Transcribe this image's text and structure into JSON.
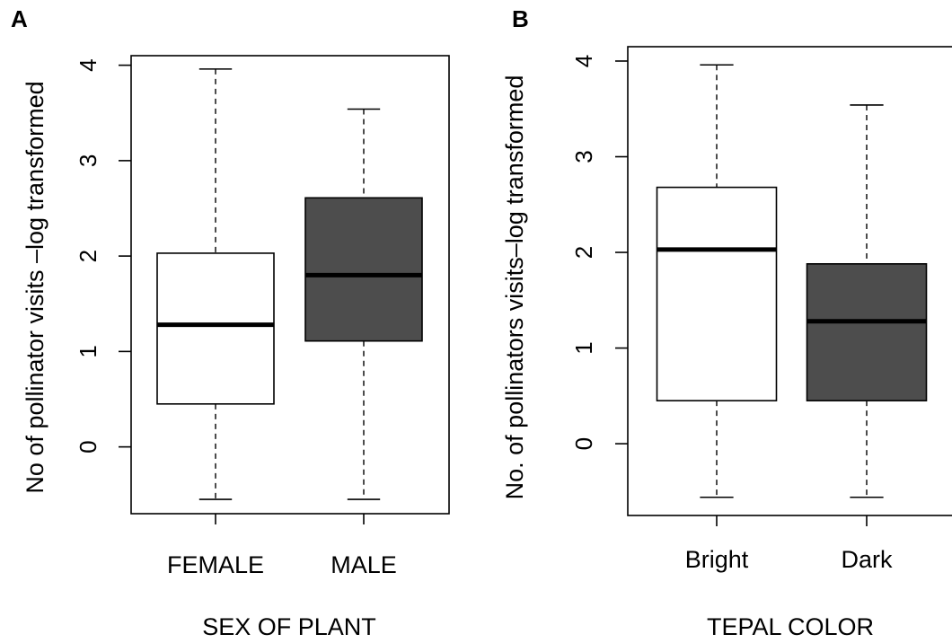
{
  "chart_data": [
    {
      "type": "boxplot",
      "panel_label": "A",
      "xlabel": "SEX OF PLANT",
      "ylabel": "No of pollinator visits –log transformed",
      "ylim": [
        -0.7,
        4.1
      ],
      "yticks": [
        0,
        1,
        2,
        3,
        4
      ],
      "categories": [
        "FEMALE",
        "MALE"
      ],
      "boxes": [
        {
          "category": "FEMALE",
          "whisker_low": -0.55,
          "q1": 0.45,
          "median": 1.28,
          "q3": 2.03,
          "whisker_high": 3.96,
          "fill": "#ffffff"
        },
        {
          "category": "MALE",
          "whisker_low": -0.55,
          "q1": 1.11,
          "median": 1.8,
          "q3": 2.61,
          "whisker_high": 3.54,
          "fill": "#4d4d4d"
        }
      ],
      "grid": false
    },
    {
      "type": "boxplot",
      "panel_label": "B",
      "xlabel": "TEPAL COLOR",
      "ylabel": "No. of pollinators visits–log transformed",
      "ylim": [
        -0.75,
        4.15
      ],
      "yticks": [
        0,
        1,
        2,
        3,
        4
      ],
      "categories": [
        "Bright",
        "Dark"
      ],
      "boxes": [
        {
          "category": "Bright",
          "whisker_low": -0.56,
          "q1": 0.45,
          "median": 2.03,
          "q3": 2.68,
          "whisker_high": 3.96,
          "fill": "#ffffff"
        },
        {
          "category": "Dark",
          "whisker_low": -0.56,
          "q1": 0.45,
          "median": 1.28,
          "q3": 1.88,
          "whisker_high": 3.54,
          "fill": "#4d4d4d"
        }
      ],
      "grid": false
    }
  ]
}
